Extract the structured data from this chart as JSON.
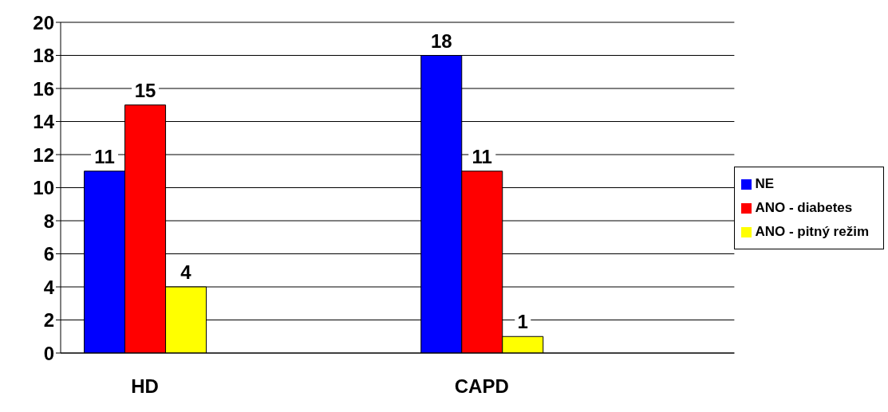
{
  "chart_data": {
    "type": "bar",
    "categories": [
      "HD",
      null,
      "CAPD",
      null
    ],
    "series": [
      {
        "name": "NE",
        "color": "#0000ff",
        "values": [
          11,
          null,
          18,
          null
        ]
      },
      {
        "name": "ANO - diabetes",
        "color": "#ff0000",
        "values": [
          15,
          null,
          11,
          null
        ]
      },
      {
        "name": "ANO - pitný režim",
        "color": "#ffff00",
        "values": [
          4,
          null,
          1,
          null
        ]
      }
    ],
    "ylim": [
      0,
      20
    ],
    "yticks": [
      0,
      2,
      4,
      6,
      8,
      10,
      12,
      14,
      16,
      18,
      20
    ],
    "grid": "y",
    "legend": "right",
    "data_labels": true
  }
}
